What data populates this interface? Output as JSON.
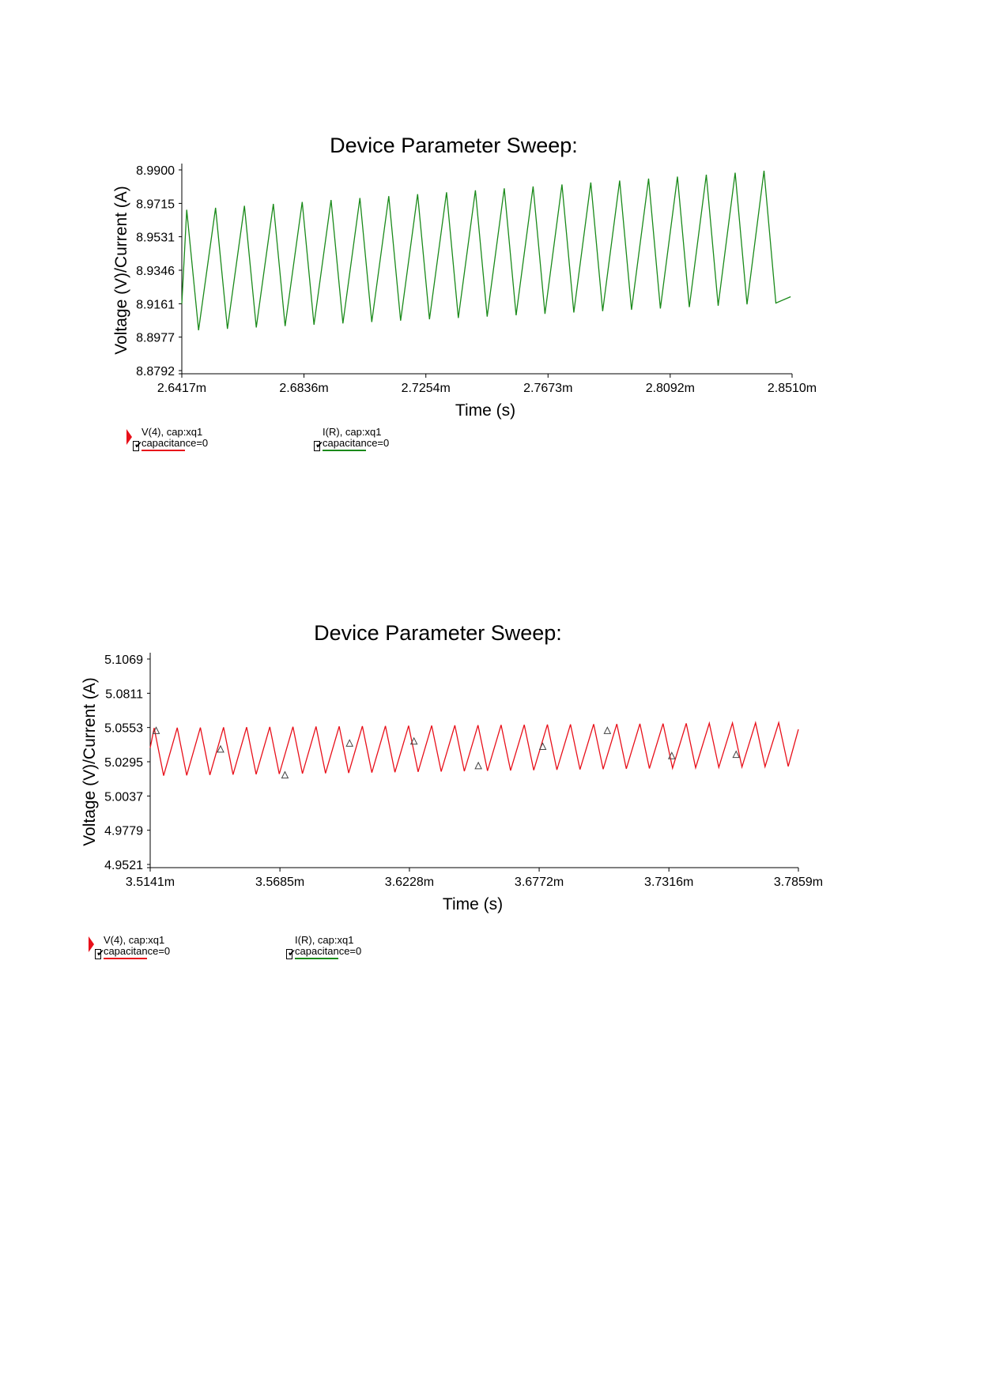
{
  "chart_data": [
    {
      "type": "line",
      "title": "Device Parameter Sweep:",
      "xlabel": "Time (s)",
      "ylabel": "Voltage (V)/Current (A)",
      "x_ticks": [
        "2.6417m",
        "2.6836m",
        "2.7254m",
        "2.7673m",
        "2.8092m",
        "2.8510m"
      ],
      "x_tick_values": [
        2.6417,
        2.6836,
        2.7254,
        2.7673,
        2.8092,
        2.851
      ],
      "y_ticks": [
        "8.9900",
        "8.9715",
        "8.9531",
        "8.9346",
        "8.9161",
        "8.8977",
        "8.8792"
      ],
      "y_tick_values": [
        8.99,
        8.9715,
        8.9531,
        8.9346,
        8.9161,
        8.8977,
        8.8792
      ],
      "xlim": [
        2.6417,
        2.851
      ],
      "ylim": [
        8.8792,
        8.99
      ],
      "series": [
        {
          "name": "I(R), cap:xq1 capacitance=0",
          "color": "#1a8a1a",
          "x_start": 2.6417,
          "x_end": 2.8505,
          "period": 0.0099,
          "start_y": 8.916,
          "peak_start": 8.968,
          "peak_end": 8.9895,
          "trough_start": 8.9015,
          "trough_end": 8.9165,
          "end_y": 8.92
        }
      ],
      "legend": [
        {
          "label": "V(4), cap:xq1 capacitance=0",
          "color": "#e8101a"
        },
        {
          "label": "I(R), cap:xq1 capacitance=0",
          "color": "#1a8a1a"
        }
      ],
      "legend_position": "bottom-left"
    },
    {
      "type": "line",
      "title": "Device Parameter Sweep:",
      "xlabel": "Time (s)",
      "ylabel": "Voltage (V)/Current (A)",
      "x_ticks": [
        "3.5141m",
        "3.5685m",
        "3.6228m",
        "3.6772m",
        "3.7316m",
        "3.7859m"
      ],
      "x_tick_values": [
        3.5141,
        3.5685,
        3.6228,
        3.6772,
        3.7316,
        3.7859
      ],
      "y_ticks": [
        "5.1069",
        "5.0811",
        "5.0553",
        "5.0295",
        "5.0037",
        "4.9779",
        "4.9521"
      ],
      "y_tick_values": [
        5.1069,
        5.0811,
        5.0553,
        5.0295,
        5.0037,
        4.9779,
        4.9521
      ],
      "xlim": [
        3.5141,
        3.7859
      ],
      "ylim": [
        4.9521,
        5.1069
      ],
      "series": [
        {
          "name": "V(4), cap:xq1 capacitance=0",
          "color": "#e8101a",
          "x_start": 3.5141,
          "x_end": 3.7859,
          "period": 0.0097,
          "start_y": 5.04,
          "peak_start": 5.055,
          "peak_end": 5.059,
          "trough_start": 5.019,
          "trough_end": 5.026,
          "end_y": 5.054
        }
      ],
      "markers": [
        {
          "x": 3.5166,
          "y": 5.0525
        },
        {
          "x": 3.5436,
          "y": 5.0385
        },
        {
          "x": 3.5706,
          "y": 5.019
        },
        {
          "x": 3.5977,
          "y": 5.043
        },
        {
          "x": 3.6247,
          "y": 5.0445
        },
        {
          "x": 3.6517,
          "y": 5.026
        },
        {
          "x": 3.6787,
          "y": 5.0405
        },
        {
          "x": 3.7058,
          "y": 5.0525
        },
        {
          "x": 3.7328,
          "y": 5.0335
        },
        {
          "x": 3.7598,
          "y": 5.0345
        }
      ],
      "legend": [
        {
          "label": "V(4), cap:xq1 capacitance=0",
          "color": "#e8101a"
        },
        {
          "label": "I(R), cap:xq1 capacitance=0",
          "color": "#1a8a1a"
        }
      ],
      "legend_position": "bottom-left"
    }
  ]
}
